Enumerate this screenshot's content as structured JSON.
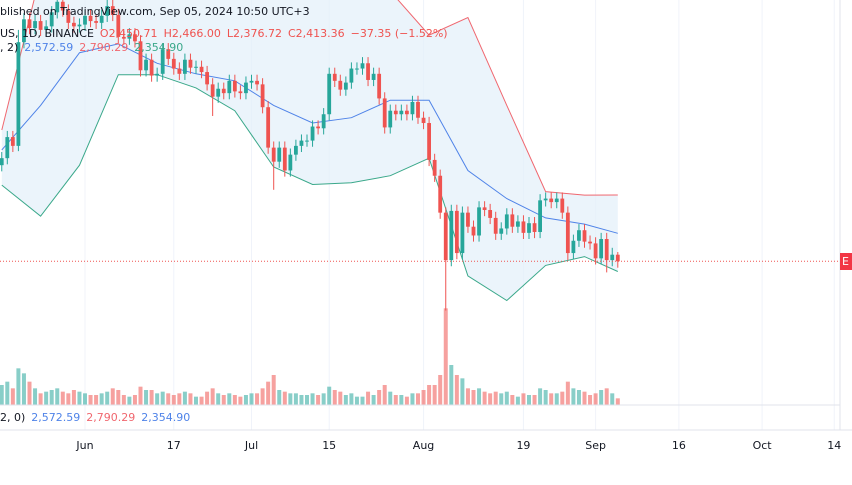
{
  "header": {
    "published": "blished on TradingView.com, Sep 05, 2024 10:50 UTC+3",
    "symbol": "US, 1D, BINANCE",
    "ohlc_labels": [
      "O2,450.71",
      "H2,466.00",
      "L2,376.72",
      "C2,413.36",
      "−37.35 (−1.52%)"
    ],
    "band_params": ", 2)",
    "band_labels": [
      "2,572.59",
      "2,790.29",
      "2,354.90"
    ],
    "lower_params": "2, 0)",
    "lower_labels": [
      "2,572.59",
      "2,790.29",
      "2,354.90"
    ],
    "price_scale_label": "E"
  },
  "chart_data": {
    "type": "candlestick",
    "x_start": "2024-05-17",
    "up_color": "#26a69a",
    "down_color": "#ef5350",
    "ylim": [
      1880,
      3900
    ],
    "vlim": [
      0,
      3000
    ],
    "open": [
      2960,
      3000,
      3120,
      3070,
      3660,
      3790,
      3740,
      3780,
      3730,
      3750,
      3830,
      3890,
      3840,
      3770,
      3750,
      3760,
      3810,
      3780,
      3770,
      3810,
      3865,
      3815,
      3690,
      3680,
      3705,
      3665,
      3500,
      3560,
      3470,
      3480,
      3620,
      3565,
      3510,
      3480,
      3560,
      3515,
      3520,
      3490,
      3420,
      3350,
      3395,
      3370,
      3440,
      3380,
      3370,
      3430,
      3440,
      3420,
      3290,
      3060,
      2980,
      3060,
      2930,
      3020,
      3070,
      3100,
      3100,
      3180,
      3170,
      3250,
      3480,
      3440,
      3390,
      3430,
      3510,
      3510,
      3540,
      3445,
      3480,
      3340,
      3175,
      3270,
      3250,
      3270,
      3250,
      3320,
      3230,
      3200,
      2990,
      2900,
      2690,
      2420,
      2700,
      2460,
      2690,
      2610,
      2560,
      2720,
      2705,
      2660,
      2570,
      2600,
      2680,
      2610,
      2640,
      2575,
      2630,
      2580,
      2760,
      2770,
      2750,
      2770,
      2690,
      2460,
      2530,
      2590,
      2525,
      2515,
      2430,
      2540,
      2420,
      2450.71
    ],
    "high": [
      3035,
      3155,
      3155,
      3730,
      3825,
      3825,
      3815,
      3815,
      3785,
      3865,
      3925,
      3925,
      3875,
      3805,
      3795,
      3845,
      3845,
      3815,
      3845,
      3900,
      3900,
      3850,
      3725,
      3740,
      3740,
      3700,
      3595,
      3595,
      3515,
      3655,
      3655,
      3600,
      3545,
      3595,
      3595,
      3555,
      3555,
      3525,
      3455,
      3430,
      3430,
      3475,
      3475,
      3415,
      3465,
      3475,
      3475,
      3455,
      3325,
      3095,
      3095,
      3095,
      3055,
      3105,
      3135,
      3135,
      3215,
      3215,
      3285,
      3515,
      3515,
      3475,
      3465,
      3545,
      3545,
      3575,
      3575,
      3515,
      3515,
      3375,
      3305,
      3305,
      3305,
      3305,
      3355,
      3355,
      3265,
      3235,
      3025,
      2935,
      2720,
      2735,
      2735,
      2725,
      2725,
      2645,
      2755,
      2755,
      2740,
      2695,
      2635,
      2715,
      2715,
      2675,
      2675,
      2665,
      2665,
      2795,
      2805,
      2805,
      2805,
      2805,
      2725,
      2565,
      2625,
      2625,
      2560,
      2550,
      2575,
      2575,
      2490,
      2466
    ],
    "low": [
      2925,
      2965,
      3035,
      3040,
      3625,
      3705,
      3705,
      3695,
      3695,
      3715,
      3795,
      3805,
      3735,
      3715,
      3715,
      3725,
      3745,
      3735,
      3735,
      3775,
      3780,
      3655,
      3645,
      3645,
      3630,
      3465,
      3465,
      3435,
      3435,
      3445,
      3530,
      3475,
      3445,
      3445,
      3480,
      3480,
      3455,
      3385,
      3240,
      3315,
      3335,
      3335,
      3345,
      3335,
      3335,
      3395,
      3385,
      3255,
      3025,
      2820,
      2945,
      2895,
      2895,
      2985,
      3035,
      3065,
      3065,
      3135,
      3135,
      3215,
      3405,
      3355,
      3355,
      3395,
      3475,
      3475,
      3410,
      3410,
      3305,
      3140,
      3140,
      3215,
      3215,
      3215,
      3215,
      3195,
      3165,
      2955,
      2865,
      2655,
      2133,
      2385,
      2425,
      2425,
      2575,
      2525,
      2525,
      2670,
      2625,
      2535,
      2535,
      2565,
      2575,
      2575,
      2540,
      2540,
      2545,
      2545,
      2725,
      2715,
      2715,
      2655,
      2420,
      2425,
      2495,
      2490,
      2480,
      2395,
      2395,
      2350,
      2385,
      2376.72
    ],
    "close": [
      3000,
      3120,
      3070,
      3660,
      3790,
      3740,
      3780,
      3730,
      3750,
      3830,
      3890,
      3840,
      3770,
      3750,
      3760,
      3810,
      3780,
      3770,
      3810,
      3865,
      3815,
      3690,
      3680,
      3705,
      3665,
      3500,
      3560,
      3470,
      3480,
      3620,
      3565,
      3510,
      3480,
      3560,
      3515,
      3520,
      3490,
      3420,
      3350,
      3395,
      3370,
      3440,
      3380,
      3370,
      3430,
      3440,
      3420,
      3290,
      3060,
      2980,
      3060,
      2930,
      3020,
      3070,
      3100,
      3100,
      3180,
      3170,
      3250,
      3480,
      3440,
      3390,
      3430,
      3510,
      3510,
      3540,
      3445,
      3480,
      3340,
      3175,
      3270,
      3250,
      3270,
      3250,
      3320,
      3230,
      3200,
      2990,
      2900,
      2690,
      2420,
      2700,
      2460,
      2690,
      2610,
      2560,
      2720,
      2705,
      2660,
      2570,
      2600,
      2680,
      2610,
      2640,
      2575,
      2630,
      2580,
      2760,
      2770,
      2750,
      2770,
      2690,
      2460,
      2530,
      2590,
      2525,
      2515,
      2430,
      2540,
      2420,
      2450.71,
      2413.36
    ],
    "volume": [
      600,
      700,
      500,
      1100,
      950,
      700,
      500,
      350,
      400,
      450,
      500,
      400,
      350,
      450,
      400,
      350,
      300,
      300,
      350,
      400,
      500,
      450,
      300,
      250,
      300,
      550,
      450,
      450,
      350,
      400,
      350,
      300,
      350,
      400,
      350,
      250,
      250,
      400,
      500,
      350,
      300,
      350,
      300,
      250,
      300,
      350,
      350,
      500,
      700,
      900,
      450,
      400,
      350,
      350,
      300,
      300,
      350,
      300,
      350,
      550,
      450,
      400,
      300,
      350,
      250,
      250,
      400,
      300,
      450,
      600,
      400,
      300,
      300,
      250,
      350,
      350,
      450,
      600,
      600,
      900,
      2900,
      1200,
      900,
      800,
      500,
      450,
      500,
      400,
      350,
      400,
      350,
      400,
      300,
      250,
      350,
      300,
      300,
      500,
      450,
      350,
      350,
      400,
      700,
      500,
      450,
      400,
      300,
      350,
      450,
      500,
      350,
      200
    ],
    "bands": {
      "x": [
        "2024-05-17",
        "2024-05-24",
        "2024-05-31",
        "2024-06-07",
        "2024-06-14",
        "2024-06-21",
        "2024-06-28",
        "2024-07-05",
        "2024-07-12",
        "2024-07-19",
        "2024-07-26",
        "2024-08-02",
        "2024-08-09",
        "2024-08-16",
        "2024-08-23",
        "2024-08-30",
        "2024-09-05"
      ],
      "fill": "#e3effa",
      "upper": {
        "color": "#f0676f",
        "values": [
          3160,
          4050,
          4100,
          4100,
          4050,
          4000,
          4000,
          4000,
          4000,
          4000,
          3950,
          3700,
          3800,
          3300,
          2810,
          2790,
          2790.29
        ]
      },
      "middle": {
        "color": "#4f83e8",
        "values": [
          3047,
          3300,
          3600,
          3650,
          3540,
          3480,
          3440,
          3300,
          3200,
          3230,
          3330,
          3330,
          2930,
          2770,
          2660,
          2625,
          2572.59
        ]
      },
      "lower": {
        "color": "#3aa88a",
        "values": [
          2847,
          2670,
          2960,
          3475,
          3475,
          3400,
          3270,
          2950,
          2850,
          2860,
          2900,
          3000,
          2330,
          2190,
          2390,
          2440,
          2354.9
        ]
      }
    },
    "xticks": [
      {
        "value": "2024-06-01",
        "label": "Jun"
      },
      {
        "value": "2024-06-17",
        "label": "17"
      },
      {
        "value": "2024-07-01",
        "label": "Jul"
      },
      {
        "value": "2024-07-15",
        "label": "15"
      },
      {
        "value": "2024-08-01",
        "label": "Aug"
      },
      {
        "value": "2024-08-19",
        "label": "19"
      },
      {
        "value": "2024-09-01",
        "label": "Sep"
      },
      {
        "value": "2024-09-16",
        "label": "16"
      },
      {
        "value": "2024-10-01",
        "label": "Oct"
      },
      {
        "value": "2024-10-14",
        "label": "14"
      }
    ]
  }
}
